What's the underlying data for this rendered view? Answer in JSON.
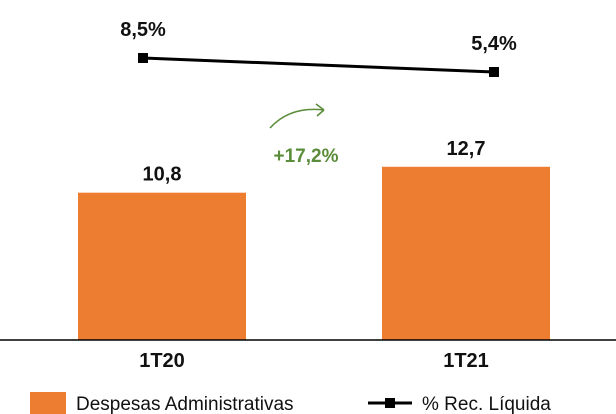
{
  "chart_data": {
    "type": "bar",
    "categories": [
      "1T20",
      "1T21"
    ],
    "series": [
      {
        "name": "Despesas Administrativas",
        "kind": "bar",
        "values": [
          10.8,
          12.7
        ],
        "value_labels": [
          "10,8",
          "12,7"
        ],
        "color": "#ED7D31"
      },
      {
        "name": "% Rec. Líquida",
        "kind": "line",
        "values": [
          8.5,
          5.4
        ],
        "value_labels": [
          "8,5%",
          "5,4%"
        ],
        "color": "#000000"
      }
    ],
    "annotation": {
      "text": "+17,2%",
      "color": "#5B8C3A"
    },
    "legend_position": "bottom",
    "grid": false
  }
}
